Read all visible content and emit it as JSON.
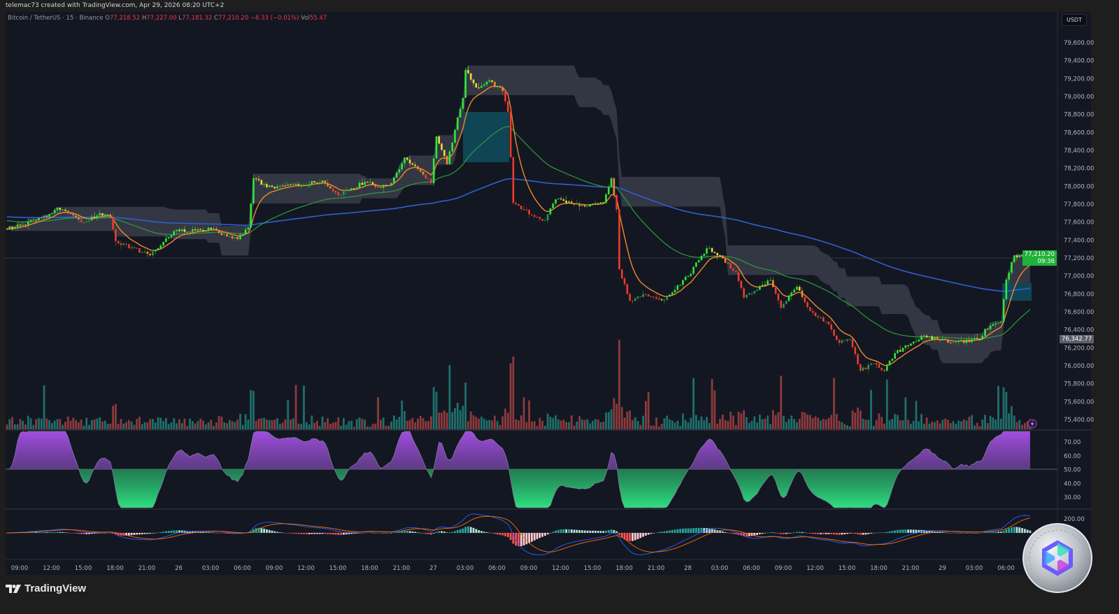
{
  "header": {
    "attribution": "telemac73 created with TradingView.com, Apr 29, 2026 08:20 UTC+2"
  },
  "legend": {
    "symbol": "Bitcoin / TetherUS · 15 · Binance",
    "o_label": "O",
    "o": "77,218.52",
    "h_label": "H",
    "h": "77,227.00",
    "l_label": "L",
    "l": "77,181.32",
    "c_label": "C",
    "c": "77,210.20",
    "change": "−8.33 (−0.01%)",
    "vol_label": "Vol",
    "vol": "55.47"
  },
  "price_axis": {
    "currency": "USDT",
    "ticks": [
      "79,600.00",
      "79,400.00",
      "79,200.00",
      "79,000.00",
      "78,800.00",
      "78,600.00",
      "78,400.00",
      "78,200.00",
      "78,000.00",
      "77,800.00",
      "77,600.00",
      "77,400.00",
      "77,200.00",
      "77,000.00",
      "76,800.00",
      "76,600.00",
      "76,400.00",
      "76,200.00",
      "76,000.00",
      "75,800.00",
      "75,600.00",
      "75,400.00"
    ],
    "last_price": "77,210.20",
    "countdown": "09:36",
    "marker_price": "76,342.77"
  },
  "rsi_axis": [
    "70.00",
    "60.00",
    "50.00",
    "40.00",
    "30.00"
  ],
  "macd_axis": [
    "200.00"
  ],
  "time_axis": [
    "09:00",
    "12:00",
    "15:00",
    "18:00",
    "21:00",
    "26",
    "03:00",
    "06:00",
    "09:00",
    "12:00",
    "15:00",
    "18:00",
    "21:00",
    "27",
    "03:00",
    "06:00",
    "09:00",
    "12:00",
    "15:00",
    "18:00",
    "21:00",
    "28",
    "03:00",
    "06:00",
    "09:00",
    "12:00",
    "15:00",
    "18:00",
    "21:00",
    "29",
    "03:00",
    "06:00"
  ],
  "footer": {
    "brand": "TradingView"
  },
  "colors": {
    "background": "#131722",
    "strong_up": "#2ee83a",
    "up": "#1e9e50",
    "pullback": "#f2d93a",
    "down": "#f28a2a",
    "strong_down": "#ee3b2b",
    "ema_fast": "#f0892a",
    "ema_mid": "#2f9a3c",
    "ema_slow": "#2f5fd0",
    "volume_up": "#1f6f6b",
    "volume_down": "#8c3a3d",
    "rsi_above": "#9c4dd6",
    "rsi_below": "#2bd67b",
    "last_price_badge": "#1fb13a",
    "marker_badge": "#5d606b"
  },
  "chart_data": {
    "type": "candlestick",
    "symbol": "Bitcoin / TetherUS",
    "interval": "15",
    "exchange": "Binance",
    "ylim": [
      75400,
      79600
    ],
    "grid": false,
    "close_anchors": [
      [
        "04-25 07:45",
        77520
      ],
      [
        "04-25 11:30",
        77660
      ],
      [
        "04-25 12:30",
        77760
      ],
      [
        "04-25 15:00",
        77600
      ],
      [
        "04-25 16:30",
        77700
      ],
      [
        "04-25 17:30",
        77660
      ],
      [
        "04-25 18:00",
        77390
      ],
      [
        "04-25 21:15",
        77230
      ],
      [
        "04-25 23:30",
        77500
      ],
      [
        "04-26 03:00",
        77520
      ],
      [
        "04-26 05:30",
        77410
      ],
      [
        "04-26 06:30",
        77540
      ],
      [
        "04-26 07:00",
        78090
      ],
      [
        "04-26 08:15",
        77990
      ],
      [
        "04-26 11:30",
        78010
      ],
      [
        "04-26 13:30",
        78065
      ],
      [
        "04-26 15:00",
        77895
      ],
      [
        "04-26 17:30",
        78050
      ],
      [
        "04-26 18:45",
        77990
      ],
      [
        "04-26 20:00",
        78035
      ],
      [
        "04-26 21:15",
        78320
      ],
      [
        "04-26 23:45",
        78035
      ],
      [
        "04-27 00:15",
        78555
      ],
      [
        "04-27 01:15",
        78245
      ],
      [
        "04-27 02:00",
        78630
      ],
      [
        "04-27 02:45",
        78985
      ],
      [
        "04-27 03:00",
        79295
      ],
      [
        "04-27 04:00",
        79100
      ],
      [
        "04-27 05:15",
        79180
      ],
      [
        "04-27 06:30",
        79060
      ],
      [
        "04-27 07:00",
        78830
      ],
      [
        "04-27 07:30",
        77815
      ],
      [
        "04-27 09:30",
        77660
      ],
      [
        "04-27 10:30",
        77620
      ],
      [
        "04-27 11:30",
        77855
      ],
      [
        "04-27 14:30",
        77775
      ],
      [
        "04-27 16:00",
        77815
      ],
      [
        "04-27 16:45",
        78090
      ],
      [
        "04-27 17:15",
        77740
      ],
      [
        "04-27 17:30",
        77075
      ],
      [
        "04-27 18:30",
        76725
      ],
      [
        "04-27 19:45",
        76800
      ],
      [
        "04-27 21:30",
        76725
      ],
      [
        "04-28 00:00",
        77000
      ],
      [
        "04-28 01:45",
        77310
      ],
      [
        "04-28 03:00",
        77230
      ],
      [
        "04-28 04:30",
        77040
      ],
      [
        "04-28 05:15",
        76760
      ],
      [
        "04-28 07:45",
        76955
      ],
      [
        "04-28 08:45",
        76645
      ],
      [
        "04-28 10:15",
        76880
      ],
      [
        "04-28 11:30",
        76610
      ],
      [
        "04-28 13:00",
        76490
      ],
      [
        "04-28 14:15",
        76255
      ],
      [
        "04-28 15:15",
        76295
      ],
      [
        "04-28 16:15",
        75945
      ],
      [
        "04-28 17:30",
        76025
      ],
      [
        "04-28 18:30",
        75945
      ],
      [
        "04-28 19:30",
        76140
      ],
      [
        "04-28 22:15",
        76335
      ],
      [
        "04-29 00:45",
        76255
      ],
      [
        "04-29 03:30",
        76295
      ],
      [
        "04-29 04:00",
        76410
      ],
      [
        "04-29 05:30",
        76490
      ],
      [
        "04-29 06:00",
        76960
      ],
      [
        "04-29 06:45",
        77230
      ],
      [
        "04-29 08:15",
        77210.2
      ]
    ],
    "last_candle": {
      "open": 77218.52,
      "high": 77227.0,
      "low": 77181.32,
      "close": 77210.2,
      "volume": 55.47
    },
    "indicators": [
      "EMA fast (orange)",
      "EMA mid (green)",
      "EMA slow (blue)",
      "Volume",
      "RSI",
      "MACD"
    ],
    "rsi_ylim": [
      30,
      70
    ],
    "macd_ticks": [
      200
    ]
  }
}
